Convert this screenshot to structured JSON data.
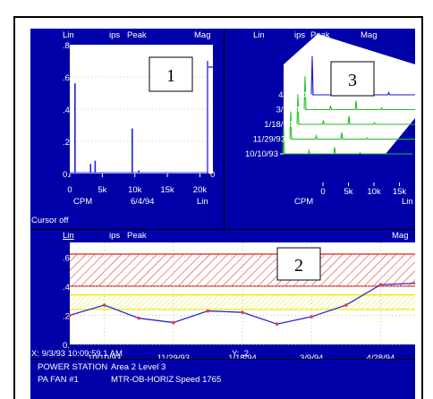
{
  "panel1": {
    "header": {
      "left": "Lin",
      "mid1": "ips",
      "mid2": "Peak",
      "right": "Mag"
    },
    "yticks": [
      ".8",
      ".6",
      ".4",
      ".2",
      "0."
    ],
    "xticks": [
      "0",
      "5k",
      "10k",
      "15k",
      "20k"
    ],
    "xlabel_left": "CPM",
    "date": "6/4/94",
    "xlabel_right": "Lin",
    "zero_mark": "0",
    "status": "Cursor off",
    "badge": "1"
  },
  "panel3": {
    "header": {
      "left": "Lin",
      "mid1": "ips",
      "mid2": "Peak",
      "right": "Mag"
    },
    "dates": [
      "4/28/94",
      "3/9/94",
      "1/18/94",
      "11/29/93",
      "10/10/93"
    ],
    "xticks": [
      "0",
      "5k",
      "10k",
      "15k"
    ],
    "xlabel_left": "CPM",
    "xlabel_right": "Lin",
    "badge": "3"
  },
  "panel2": {
    "header": {
      "left": "Lin",
      "mid1": "ips",
      "mid2": "Peak",
      "right": "Mag"
    },
    "yticks": [
      ".6",
      ".4",
      ".2",
      "0."
    ],
    "xticks": [
      "10/10/93",
      "11/29/93",
      "1/18/94",
      "3/9/94",
      "4/28/94"
    ],
    "cursor_x": "X: 9/3/93 10:09:59.1 AM",
    "cursor_y": "Y: .2",
    "badge": "2"
  },
  "chart_data": [
    {
      "type": "line",
      "title": "",
      "xlabel": "CPM",
      "ylabel": "Lin",
      "xlim": [
        0,
        22000
      ],
      "ylim": [
        0,
        0.8
      ],
      "x": [
        800,
        3200,
        3900,
        9600,
        10600,
        22000
      ],
      "series": [
        {
          "values": [
            0.56,
            0.06,
            0.08,
            0.28,
            0.02,
            0.63
          ]
        }
      ]
    },
    {
      "type": "line",
      "title": "",
      "xlabel": "CPM",
      "categories": [
        "10/10/93",
        "11/29/93",
        "1/18/94",
        "3/9/94",
        "4/28/94"
      ],
      "x": [
        0,
        5000,
        10000,
        15000
      ],
      "series": [
        {
          "name": "10/10/93",
          "values": [
            0.45,
            0.06,
            0.12,
            0.02
          ]
        },
        {
          "name": "11/29/93",
          "values": [
            0.5,
            0.06,
            0.12,
            0.02
          ]
        },
        {
          "name": "1/18/94",
          "values": [
            0.55,
            0.07,
            0.15,
            0.03
          ]
        },
        {
          "name": "3/9/94",
          "values": [
            0.6,
            0.07,
            0.16,
            0.03
          ]
        },
        {
          "name": "4/28/94",
          "values": [
            0.7,
            0.08,
            0.18,
            0.04
          ]
        }
      ]
    },
    {
      "type": "line",
      "title": "",
      "ylabel": "Lin",
      "ylim": [
        0,
        0.7
      ],
      "x": [
        "9/3/93",
        "10/10/93",
        "11/1/93",
        "11/29/93",
        "12/20/93",
        "1/18/94",
        "2/10/94",
        "3/9/94",
        "4/5/94",
        "4/28/94",
        "5/25/94"
      ],
      "series": [
        {
          "values": [
            0.2,
            0.27,
            0.18,
            0.15,
            0.23,
            0.22,
            0.14,
            0.19,
            0.27,
            0.41,
            0.42
          ]
        }
      ],
      "alarm_bands": [
        {
          "from": 0.4,
          "to": 0.62,
          "color": "#e02020"
        },
        {
          "from": 0.24,
          "to": 0.34,
          "color": "#e8e800"
        }
      ]
    }
  ],
  "status_bar": {
    "line1": [
      "POWER STATION",
      "Area 2 Level 3"
    ],
    "line2": [
      "PA FAN #1",
      "MTR-OB-HORIZ",
      "Speed 1765"
    ]
  }
}
